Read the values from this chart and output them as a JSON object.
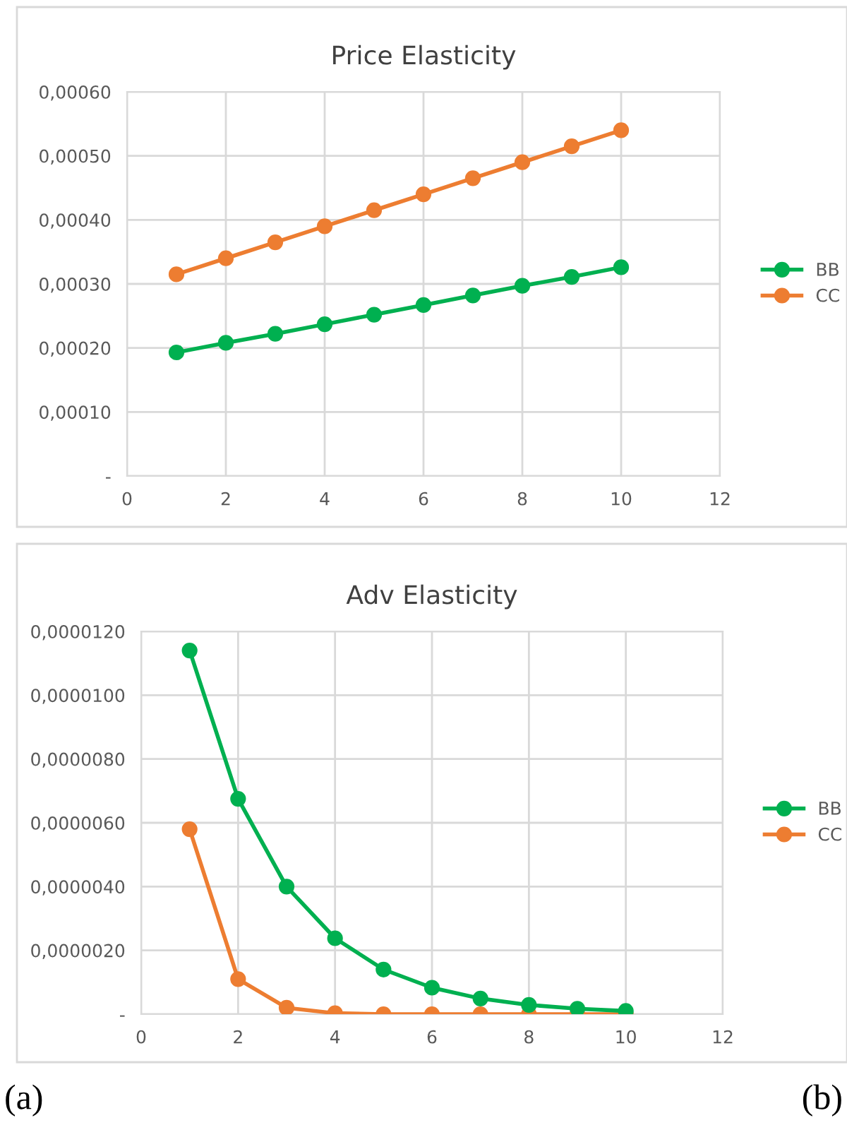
{
  "chart_data": [
    {
      "type": "line",
      "title": "Price Elasticity",
      "x": [
        1,
        2,
        3,
        4,
        5,
        6,
        7,
        8,
        9,
        10
      ],
      "series": [
        {
          "name": "BB",
          "color": "#00b050",
          "values": [
            0.000193,
            0.000208,
            0.000222,
            0.000237,
            0.000252,
            0.000267,
            0.000282,
            0.000297,
            0.000311,
            0.000326
          ]
        },
        {
          "name": "CC",
          "color": "#ed7d31",
          "values": [
            0.000315,
            0.00034,
            0.000365,
            0.00039,
            0.000415,
            0.00044,
            0.000465,
            0.00049,
            0.000515,
            0.00054
          ]
        }
      ],
      "xlim": [
        0,
        12
      ],
      "xticks": [
        0,
        2,
        4,
        6,
        8,
        10,
        12
      ],
      "ylim": [
        0,
        0.0006
      ],
      "yticks": [
        {
          "value": 0,
          "label": "-"
        },
        {
          "value": 0.0001,
          "label": "0,00010"
        },
        {
          "value": 0.0002,
          "label": "0,00020"
        },
        {
          "value": 0.0003,
          "label": "0,00030"
        },
        {
          "value": 0.0004,
          "label": "0,00040"
        },
        {
          "value": 0.0005,
          "label": "0,00050"
        },
        {
          "value": 0.0006,
          "label": "0,00060"
        }
      ],
      "grid": true,
      "legend": "right",
      "marker": "circle",
      "line_style": "solid"
    },
    {
      "type": "line",
      "title": "Adv Elasticity",
      "x": [
        1,
        2,
        3,
        4,
        5,
        6,
        7,
        8,
        9,
        10
      ],
      "series": [
        {
          "name": "BB",
          "color": "#00b050",
          "values": [
            1.14e-05,
            6.75e-06,
            4e-06,
            2.38e-06,
            1.4e-06,
            8.3e-07,
            4.9e-07,
            2.9e-07,
            1.7e-07,
            1e-07
          ]
        },
        {
          "name": "CC",
          "color": "#ed7d31",
          "values": [
            5.8e-06,
            1.1e-06,
            2e-07,
            3e-08,
            0,
            0,
            0,
            0,
            0,
            0
          ]
        }
      ],
      "xlim": [
        0,
        12
      ],
      "xticks": [
        0,
        2,
        4,
        6,
        8,
        10,
        12
      ],
      "ylim": [
        0,
        1.2e-05
      ],
      "yticks": [
        {
          "value": 0,
          "label": "-"
        },
        {
          "value": 2e-06,
          "label": "0,0000020"
        },
        {
          "value": 4e-06,
          "label": "0,0000040"
        },
        {
          "value": 6e-06,
          "label": "0,0000060"
        },
        {
          "value": 8e-06,
          "label": "0,0000080"
        },
        {
          "value": 1e-05,
          "label": "0,0000100"
        },
        {
          "value": 1.2e-05,
          "label": "0,0000120"
        }
      ],
      "grid": true,
      "legend": "right",
      "marker": "circle",
      "line_style": "solid",
      "annotations": [
        "(a)",
        "(b)"
      ]
    }
  ]
}
